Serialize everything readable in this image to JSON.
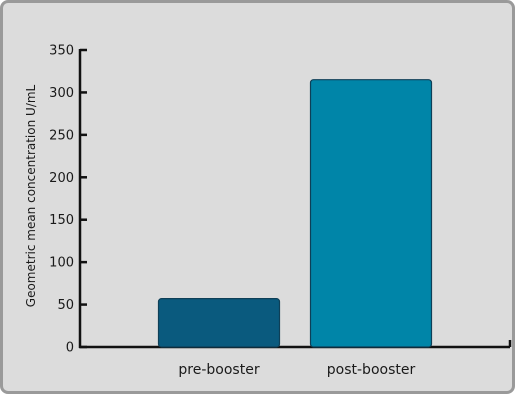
{
  "chart_data": {
    "type": "bar",
    "categories": [
      "pre-booster",
      "post-booster"
    ],
    "values": [
      57,
      315
    ],
    "bar_colors": [
      "#0a5a7e",
      "#0085a8"
    ],
    "bar_border_color": "#0e3f57",
    "ylabel": "Geometric mean concentration U/mL",
    "xlabel": "",
    "ylim": [
      0,
      350
    ],
    "yticks": [
      0,
      50,
      100,
      150,
      200,
      250,
      300,
      350
    ],
    "grid": false,
    "background": "#dcdcdc",
    "frame_color": "#9a9a9a"
  }
}
